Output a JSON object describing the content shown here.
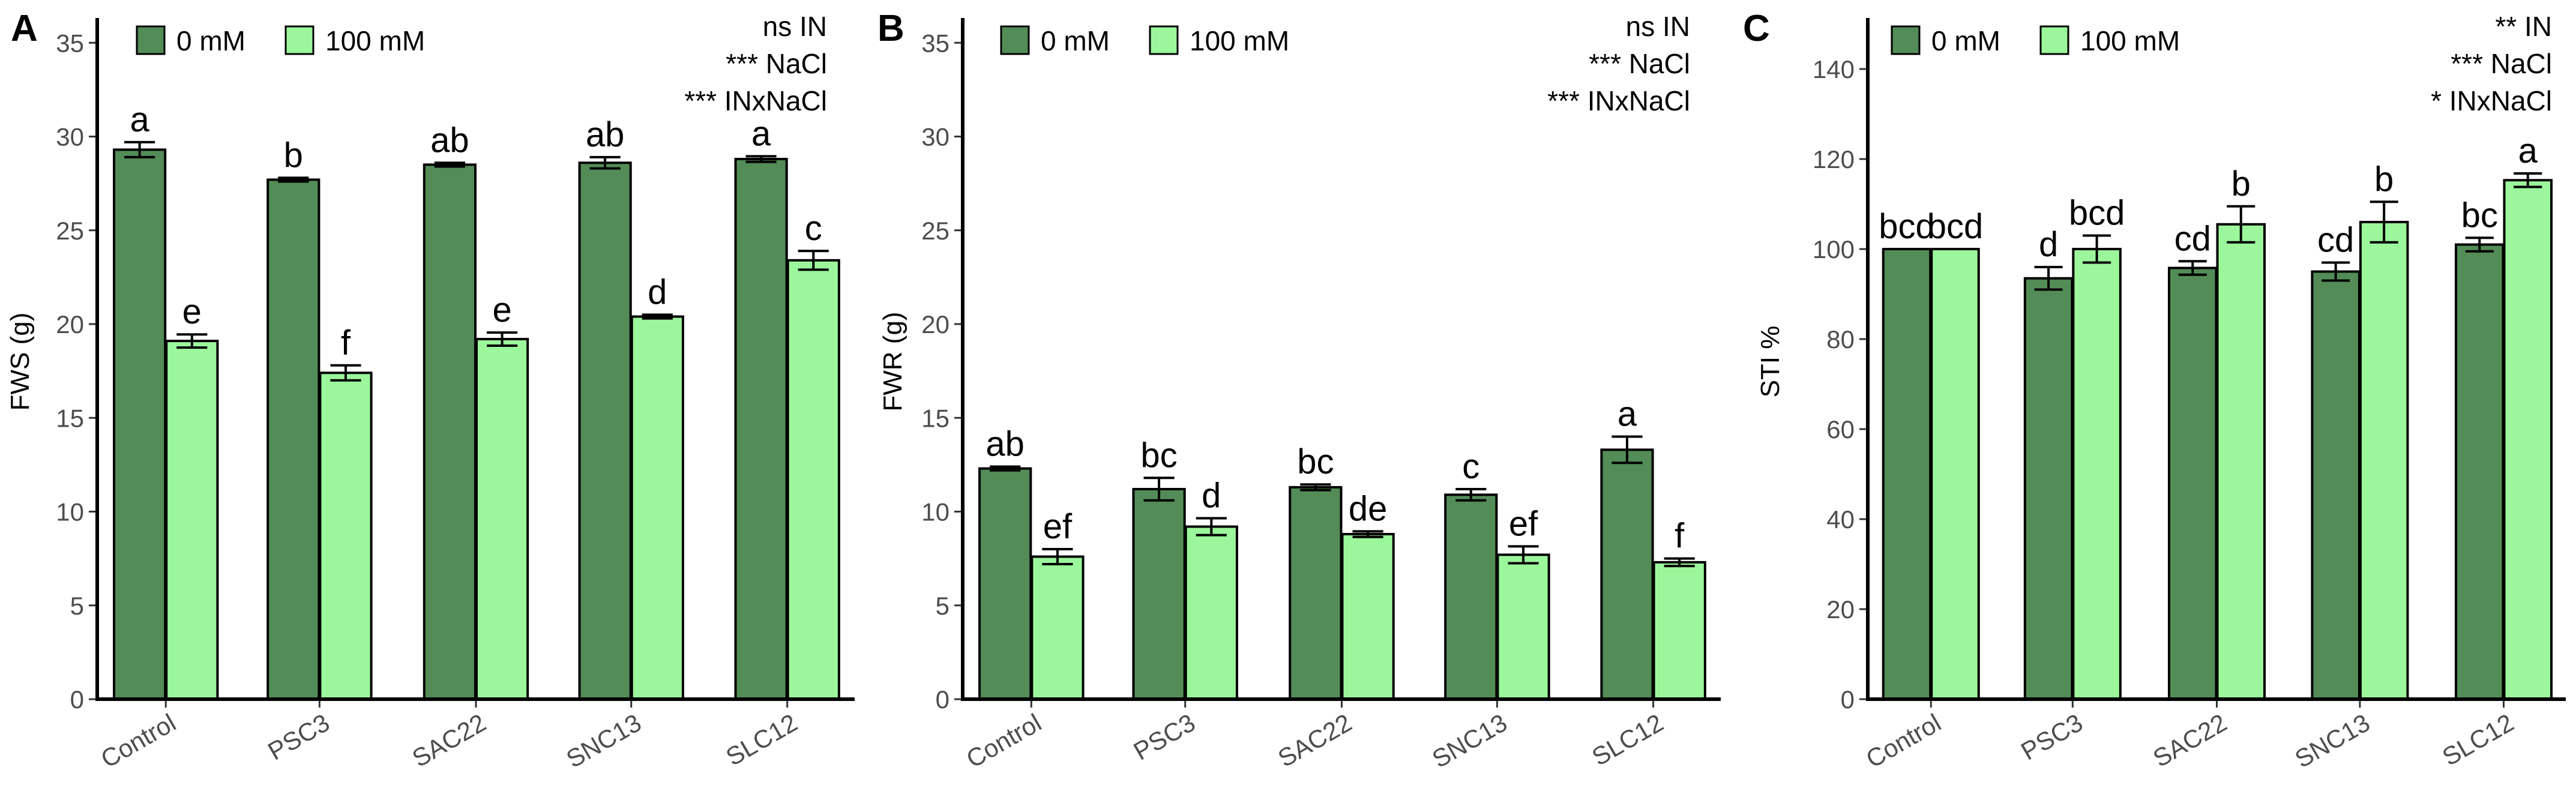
{
  "chart_data": [
    {
      "type": "bar",
      "panel": "A",
      "ylabel": "FWS (g)",
      "xlabel": "",
      "ylim": [
        0,
        36
      ],
      "yticks": [
        0,
        5,
        10,
        15,
        20,
        25,
        30,
        35
      ],
      "categories": [
        "Control",
        "PSC3",
        "SAC22",
        "SNC13",
        "SLC12"
      ],
      "series": [
        {
          "name": "0 mM",
          "values": [
            29.3,
            27.7,
            28.5,
            28.6,
            28.8
          ],
          "errors": [
            0.4,
            0.1,
            0.1,
            0.3,
            0.15
          ],
          "letters": [
            "a",
            "b",
            "ab",
            "ab",
            "a"
          ]
        },
        {
          "name": "100 mM",
          "values": [
            19.1,
            17.4,
            19.2,
            20.4,
            23.4
          ],
          "errors": [
            0.35,
            0.4,
            0.35,
            0.1,
            0.5
          ],
          "letters": [
            "e",
            "f",
            "e",
            "d",
            "c"
          ]
        }
      ],
      "stats": [
        "ns IN",
        "*** NaCl",
        "*** INxNaCl"
      ],
      "legend_position": "top-left",
      "grid": false
    },
    {
      "type": "bar",
      "panel": "B",
      "ylabel": "FWR (g)",
      "xlabel": "",
      "ylim": [
        0,
        36
      ],
      "yticks": [
        0,
        5,
        10,
        15,
        20,
        25,
        30,
        35
      ],
      "categories": [
        "Control",
        "PSC3",
        "SAC22",
        "SNC13",
        "SLC12"
      ],
      "series": [
        {
          "name": "0 mM",
          "values": [
            12.3,
            11.2,
            11.3,
            10.9,
            13.3
          ],
          "errors": [
            0.1,
            0.6,
            0.15,
            0.3,
            0.7
          ],
          "letters": [
            "ab",
            "bc",
            "bc",
            "c",
            "a"
          ]
        },
        {
          "name": "100 mM",
          "values": [
            7.6,
            9.2,
            8.8,
            7.7,
            7.3
          ],
          "errors": [
            0.4,
            0.45,
            0.15,
            0.45,
            0.2
          ],
          "letters": [
            "ef",
            "d",
            "de",
            "ef",
            "f"
          ]
        }
      ],
      "stats": [
        "ns IN",
        "*** NaCl",
        "*** INxNaCl"
      ],
      "legend_position": "top-left",
      "grid": false
    },
    {
      "type": "bar",
      "panel": "C",
      "ylabel": "STI %",
      "xlabel": "",
      "ylim": [
        0,
        150
      ],
      "yticks": [
        0,
        20,
        40,
        60,
        80,
        100,
        120,
        140
      ],
      "categories": [
        "Control",
        "PSC3",
        "SAC22",
        "SNC13",
        "SLC12"
      ],
      "series": [
        {
          "name": "0 mM",
          "values": [
            100,
            93.5,
            95.8,
            95,
            101
          ],
          "errors": [
            0,
            2.5,
            1.5,
            2,
            1.5
          ],
          "letters": [
            "bcd",
            "d",
            "cd",
            "cd",
            "bc"
          ]
        },
        {
          "name": "100 mM",
          "values": [
            100,
            100,
            105.5,
            106,
            115.3
          ],
          "errors": [
            0,
            3,
            4,
            4.5,
            1.5
          ],
          "letters": [
            "bcd",
            "bcd",
            "b",
            "b",
            "a"
          ]
        }
      ],
      "stats": [
        "** IN",
        "*** NaCl",
        "* INxNaCl"
      ],
      "legend_position": "top-left",
      "grid": false
    }
  ],
  "colors": {
    "series_0": "#538c57",
    "series_1": "#9cf79c",
    "bar_stroke": "#000000",
    "axis": "#000000"
  }
}
